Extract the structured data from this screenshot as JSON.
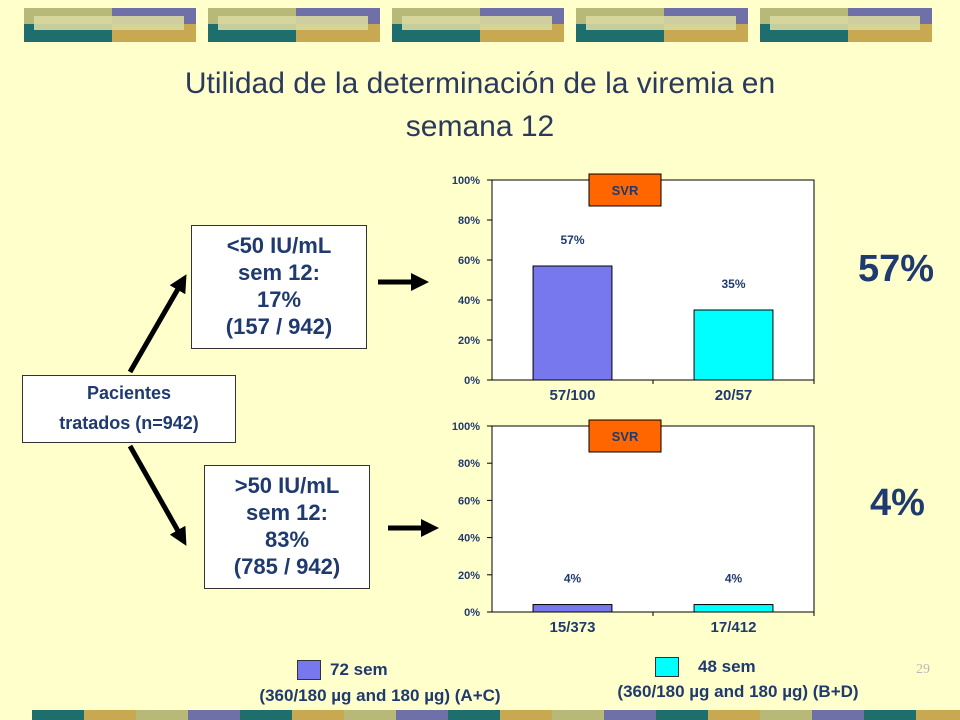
{
  "slide": {
    "title_line1": "Utilidad de la determinación de la viremia en",
    "title_line2": "semana 12",
    "page_number": "29"
  },
  "colors": {
    "background": "#FFFFCC",
    "series_72": "#7777EE",
    "series_48": "#00FFFF",
    "svr_label": "#FF6600",
    "text": "#1F3A6E"
  },
  "flow": {
    "patients": {
      "line1": "Pacientes",
      "line2": "tratados (n=942)"
    },
    "below50": {
      "line1": "<50 IU/mL",
      "line2": "sem 12:",
      "line3": "17%",
      "line4": "(157 / 942)"
    },
    "above50": {
      "line1": ">50 IU/mL",
      "line2": "sem 12:",
      "line3": "83%",
      "line4": "(785 / 942)"
    },
    "result_top": "57%",
    "result_bottom": "4%"
  },
  "legend": {
    "series_72_line1": "72 sem",
    "series_72_line2": "(360/180 µg and 180 µg) (A+C)",
    "series_48_line1": "48 sem",
    "series_48_line2": "(360/180 µg and 180 µg) (B+D)"
  },
  "chart_data": [
    {
      "type": "bar",
      "title": "SVR",
      "categories": [
        "57/100",
        "20/57"
      ],
      "values": [
        57,
        35
      ],
      "data_labels": [
        "57%",
        "35%"
      ],
      "colors": [
        "#7777EE",
        "#00FFFF"
      ],
      "ylim": [
        0,
        100
      ],
      "yticks": [
        "0%",
        "20%",
        "40%",
        "60%",
        "80%",
        "100%"
      ]
    },
    {
      "type": "bar",
      "title": "SVR",
      "categories": [
        "15/373",
        "17/412"
      ],
      "values": [
        4,
        4
      ],
      "data_labels": [
        "4%",
        "4%"
      ],
      "colors": [
        "#7777EE",
        "#00FFFF"
      ],
      "ylim": [
        0,
        100
      ],
      "yticks": [
        "0%",
        "20%",
        "40%",
        "60%",
        "80%",
        "100%"
      ]
    }
  ]
}
